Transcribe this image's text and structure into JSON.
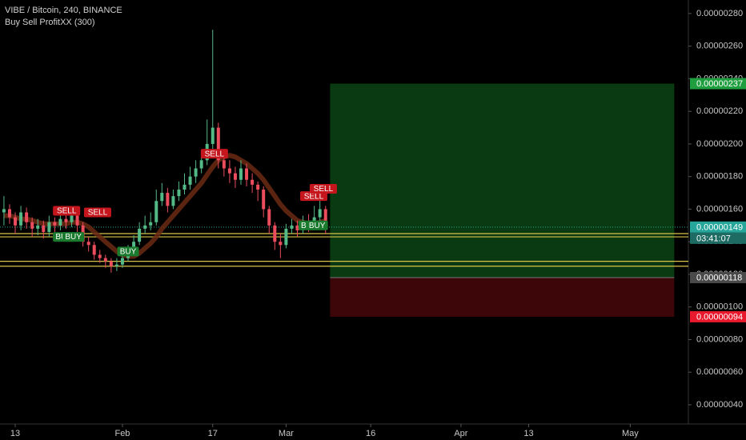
{
  "chart_data": {
    "type": "candlestick",
    "title": "VIBE / Bitcoin, 240, BINANCE",
    "subtitle": "Buy Sell ProfitXX (300)",
    "x": [
      10,
      11,
      12,
      13,
      14,
      15,
      16,
      17,
      18,
      19,
      20,
      21,
      22,
      23,
      24,
      25,
      26,
      27,
      28,
      29,
      30,
      31,
      32,
      33,
      34,
      35,
      36,
      37,
      38,
      39,
      40,
      41,
      42,
      43,
      44,
      45,
      46,
      47,
      48,
      49,
      50,
      51,
      52,
      53,
      54,
      55,
      56,
      57,
      58,
      59,
      60,
      61,
      62,
      63,
      64,
      65,
      66,
      67
    ],
    "open": [
      1.58e-06,
      1.6e-06,
      1.55e-06,
      1.5e-06,
      1.58e-06,
      1.52e-06,
      1.48e-06,
      1.5e-06,
      1.46e-06,
      1.52e-06,
      1.5e-06,
      1.54e-06,
      1.52e-06,
      1.56e-06,
      1.5e-06,
      1.4e-06,
      1.38e-06,
      1.32e-06,
      1.3e-06,
      1.28e-06,
      1.25e-06,
      1.26e-06,
      1.3e-06,
      1.35e-06,
      1.4e-06,
      1.48e-06,
      1.5e-06,
      1.52e-06,
      1.65e-06,
      1.7e-06,
      1.62e-06,
      1.68e-06,
      1.72e-06,
      1.75e-06,
      1.8e-06,
      1.85e-06,
      1.9e-06,
      2e-06,
      2.1e-06,
      1.9e-06,
      1.85e-06,
      1.82e-06,
      1.78e-06,
      1.85e-06,
      1.78e-06,
      1.75e-06,
      1.72e-06,
      1.6e-06,
      1.5e-06,
      1.4e-06,
      1.38e-06,
      1.48e-06,
      1.5e-06,
      1.47e-06,
      1.52e-06,
      1.5e-06,
      1.55e-06,
      1.6e-06
    ],
    "high": [
      1.68e-06,
      1.63e-06,
      1.58e-06,
      1.62e-06,
      1.61e-06,
      1.55e-06,
      1.54e-06,
      1.53e-06,
      1.56e-06,
      1.55e-06,
      1.58e-06,
      1.57e-06,
      1.6e-06,
      1.58e-06,
      1.52e-06,
      1.43e-06,
      1.4e-06,
      1.35e-06,
      1.32e-06,
      1.3e-06,
      1.3e-06,
      1.33e-06,
      1.38e-06,
      1.44e-06,
      1.52e-06,
      1.56e-06,
      1.58e-06,
      1.72e-06,
      1.76e-06,
      1.73e-06,
      1.72e-06,
      1.77e-06,
      1.82e-06,
      1.86e-06,
      1.9e-06,
      1.96e-06,
      2.15e-06,
      2.7e-06,
      2.13e-06,
      1.95e-06,
      1.9e-06,
      1.86e-06,
      1.9e-06,
      1.88e-06,
      1.82e-06,
      1.77e-06,
      1.74e-06,
      1.62e-06,
      1.52e-06,
      1.45e-06,
      1.51e-06,
      1.54e-06,
      1.53e-06,
      1.56e-06,
      1.57e-06,
      1.62e-06,
      1.7e-06,
      1.62e-06
    ],
    "low": [
      1.5e-06,
      1.51e-06,
      1.45e-06,
      1.47e-06,
      1.48e-06,
      1.43e-06,
      1.44e-06,
      1.42e-06,
      1.43e-06,
      1.46e-06,
      1.47e-06,
      1.48e-06,
      1.49e-06,
      1.46e-06,
      1.37e-06,
      1.34e-06,
      1.29e-06,
      1.27e-06,
      1.24e-06,
      1.21e-06,
      1.22e-06,
      1.24e-06,
      1.28e-06,
      1.33e-06,
      1.38e-06,
      1.45e-06,
      1.47e-06,
      1.5e-06,
      1.62e-06,
      1.58e-06,
      1.6e-06,
      1.65e-06,
      1.69e-06,
      1.72e-06,
      1.76e-06,
      1.82e-06,
      1.87e-06,
      1.95e-06,
      1.85e-06,
      1.8e-06,
      1.76e-06,
      1.73e-06,
      1.75e-06,
      1.74e-06,
      1.7e-06,
      1.65e-06,
      1.55e-06,
      1.45e-06,
      1.35e-06,
      1.3e-06,
      1.36e-06,
      1.45e-06,
      1.43e-06,
      1.45e-06,
      1.46e-06,
      1.48e-06,
      1.53e-06,
      1.45e-06
    ],
    "close": [
      1.6e-06,
      1.55e-06,
      1.5e-06,
      1.58e-06,
      1.52e-06,
      1.48e-06,
      1.5e-06,
      1.46e-06,
      1.52e-06,
      1.5e-06,
      1.54e-06,
      1.52e-06,
      1.56e-06,
      1.5e-06,
      1.4e-06,
      1.38e-06,
      1.32e-06,
      1.3e-06,
      1.28e-06,
      1.25e-06,
      1.26e-06,
      1.3e-06,
      1.35e-06,
      1.4e-06,
      1.48e-06,
      1.5e-06,
      1.52e-06,
      1.65e-06,
      1.7e-06,
      1.62e-06,
      1.68e-06,
      1.72e-06,
      1.75e-06,
      1.8e-06,
      1.85e-06,
      1.9e-06,
      2e-06,
      2.1e-06,
      1.9e-06,
      1.85e-06,
      1.82e-06,
      1.78e-06,
      1.85e-06,
      1.78e-06,
      1.75e-06,
      1.72e-06,
      1.6e-06,
      1.5e-06,
      1.4e-06,
      1.38e-06,
      1.48e-06,
      1.5e-06,
      1.47e-06,
      1.52e-06,
      1.5e-06,
      1.55e-06,
      1.6e-06,
      1.49e-06
    ],
    "ma": [
      1.56e-06,
      1.56e-06,
      1.55e-06,
      1.54e-06,
      1.54e-06,
      1.53e-06,
      1.52e-06,
      1.51e-06,
      1.51e-06,
      1.51e-06,
      1.51e-06,
      1.51e-06,
      1.52e-06,
      1.52e-06,
      1.51e-06,
      1.49e-06,
      1.46e-06,
      1.43e-06,
      1.4e-06,
      1.37e-06,
      1.34e-06,
      1.32e-06,
      1.31e-06,
      1.31e-06,
      1.33e-06,
      1.36e-06,
      1.39e-06,
      1.43e-06,
      1.48e-06,
      1.52e-06,
      1.56e-06,
      1.6e-06,
      1.64e-06,
      1.68e-06,
      1.72e-06,
      1.76e-06,
      1.81e-06,
      1.86e-06,
      1.9e-06,
      1.92e-06,
      1.93e-06,
      1.92e-06,
      1.9e-06,
      1.88e-06,
      1.85e-06,
      1.82e-06,
      1.78e-06,
      1.73e-06,
      1.68e-06,
      1.63e-06,
      1.59e-06,
      1.56e-06,
      1.53e-06,
      1.52e-06,
      1.51e-06,
      1.51e-06,
      1.52e-06,
      1.53e-06
    ],
    "up_color": "#53b987",
    "down_color": "#eb4d5c",
    "ma_color": "#6b2a14",
    "xlim": [
      9.3,
      131.3
    ],
    "xticks": [
      {
        "value": 12,
        "label": "13"
      },
      {
        "value": 31,
        "label": "Feb"
      },
      {
        "value": 47,
        "label": "17"
      },
      {
        "value": 60,
        "label": "Mar"
      },
      {
        "value": 75,
        "label": "16"
      },
      {
        "value": 91,
        "label": "Apr"
      },
      {
        "value": 103,
        "label": "13"
      },
      {
        "value": 121,
        "label": "May"
      }
    ],
    "ylim": [
      2.82e-07,
      2.883e-06
    ],
    "yticks": [
      {
        "value": 4e-07,
        "label": "0.00000040"
      },
      {
        "value": 6e-07,
        "label": "0.00000060"
      },
      {
        "value": 8e-07,
        "label": "0.00000080"
      },
      {
        "value": 1e-06,
        "label": "0.00000100"
      },
      {
        "value": 1.2e-06,
        "label": "0.00000120"
      },
      {
        "value": 1.4e-06,
        "label": "0.00000140"
      },
      {
        "value": 1.6e-06,
        "label": "0.00000160"
      },
      {
        "value": 1.8e-06,
        "label": "0.00000180"
      },
      {
        "value": 2e-06,
        "label": "0.00000200"
      },
      {
        "value": 2.2e-06,
        "label": "0.00000220"
      },
      {
        "value": 2.4e-06,
        "label": "0.00000240"
      },
      {
        "value": 2.6e-06,
        "label": "0.00000260"
      },
      {
        "value": 2.8e-06,
        "label": "0.00000280"
      }
    ],
    "levels": [
      1.45e-06,
      1.43e-06,
      1.28e-06,
      1.25e-06
    ],
    "level_color": "#d8c34a",
    "position": {
      "x": [
        67.8,
        128.8
      ],
      "target": 2.37e-06,
      "entry": 1.18e-06,
      "stop": 9.4e-07
    },
    "annotations": [
      {
        "text": "SELL",
        "x": 21.1,
        "y": 1.59e-06
      },
      {
        "text": "SELL",
        "x": 26.6,
        "y": 1.58e-06
      },
      {
        "text": "SELL",
        "x": 47.3,
        "y": 1.94e-06
      },
      {
        "text": "SELL",
        "x": 64.9,
        "y": 1.68e-06
      },
      {
        "text": "SELL",
        "x": 66.6,
        "y": 1.725e-06
      },
      {
        "text": "BUY",
        "x": 20.6,
        "y": 1.43e-06
      },
      {
        "text": "BUY",
        "x": 22.3,
        "y": 1.43e-06
      },
      {
        "text": "BUY",
        "x": 32.0,
        "y": 1.34e-06
      },
      {
        "text": "BUY",
        "x": 64.1,
        "y": 1.5e-06
      },
      {
        "text": "BUY",
        "x": 65.5,
        "y": 1.5e-06
      }
    ],
    "current_price": 1.49e-06,
    "price_labels": [
      {
        "value": 2.37e-06,
        "label": "0.00000237",
        "color": "#1e9e3e"
      },
      {
        "value": 1.49e-06,
        "label": "0.00000149",
        "color": "#26a69a"
      },
      {
        "value": 1.18e-06,
        "label": "0.00000118",
        "color": "#4a4a4a"
      },
      {
        "value": 9.4e-07,
        "label": "0.00000094",
        "color": "#e8192c"
      }
    ],
    "countdown": "03:41:07"
  }
}
